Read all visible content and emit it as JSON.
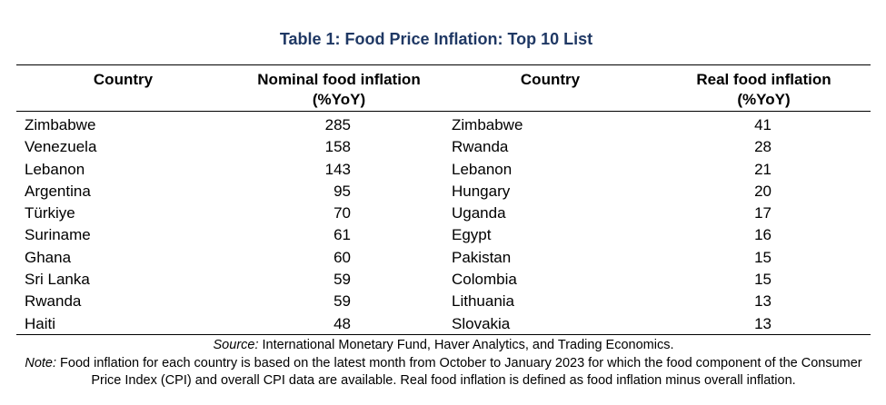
{
  "title": "Table 1: Food Price Inflation: Top 10 List",
  "headers": {
    "country_left": "Country",
    "nominal_line1": "Nominal food inflation",
    "nominal_line2": "(%YoY)",
    "country_right": "Country",
    "real_line1": "Real food inflation",
    "real_line2": "(%YoY)"
  },
  "rows": [
    {
      "country_nominal": "Zimbabwe",
      "nominal": "285",
      "country_real": "Zimbabwe",
      "real": "41"
    },
    {
      "country_nominal": "Venezuela",
      "nominal": "158",
      "country_real": "Rwanda",
      "real": "28"
    },
    {
      "country_nominal": "Lebanon",
      "nominal": "143",
      "country_real": "Lebanon",
      "real": "21"
    },
    {
      "country_nominal": "Argentina",
      "nominal": "95",
      "country_real": "Hungary",
      "real": "20"
    },
    {
      "country_nominal": "Türkiye",
      "nominal": "70",
      "country_real": "Uganda",
      "real": "17"
    },
    {
      "country_nominal": "Suriname",
      "nominal": "61",
      "country_real": "Egypt",
      "real": "16"
    },
    {
      "country_nominal": "Ghana",
      "nominal": "60",
      "country_real": "Pakistan",
      "real": "15"
    },
    {
      "country_nominal": "Sri Lanka",
      "nominal": "59",
      "country_real": "Colombia",
      "real": "15"
    },
    {
      "country_nominal": "Rwanda",
      "nominal": "59",
      "country_real": "Lithuania",
      "real": "13"
    },
    {
      "country_nominal": "Haiti",
      "nominal": "48",
      "country_real": "Slovakia",
      "real": "13"
    }
  ],
  "source": {
    "label": "Source:",
    "text": " International Monetary Fund, Haver Analytics, and Trading Economics."
  },
  "note": {
    "label": "Note:",
    "text": " Food inflation for each country is based on the latest month from October to January 2023 for which the food component of the Consumer Price Index (CPI) and overall CPI data are available. Real food inflation is defined as food inflation minus overall inflation."
  },
  "colors": {
    "title": "#1f3864",
    "text": "#000000"
  }
}
